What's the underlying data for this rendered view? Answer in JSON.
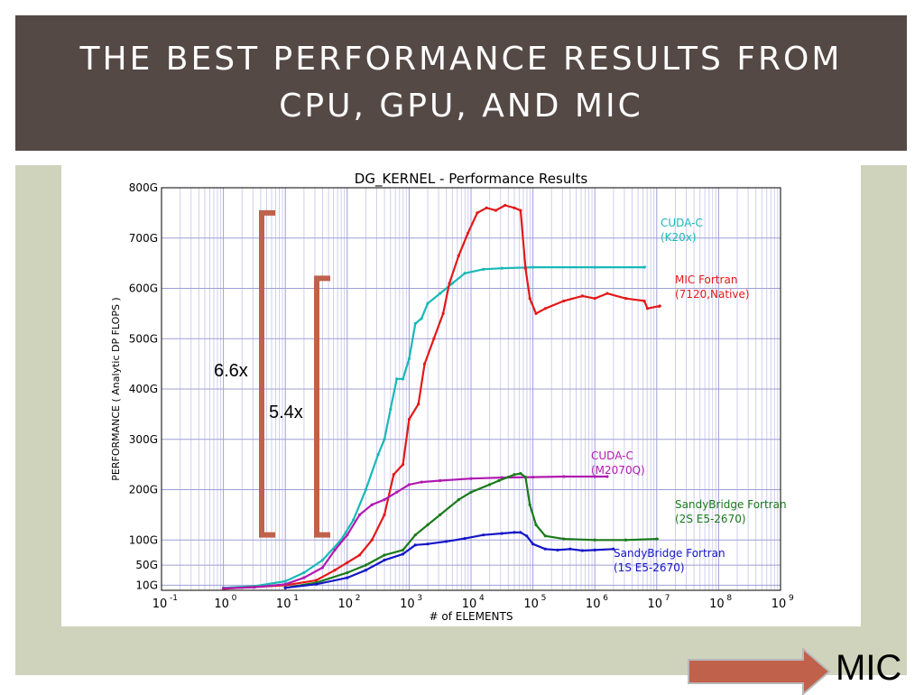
{
  "slide": {
    "title": "THE BEST PERFORMANCE RESULTS FROM CPU, GPU, AND MIC",
    "next_label": "MIC"
  },
  "chart_data": {
    "type": "line",
    "title": "DG_KERNEL - Performance Results",
    "xlabel": "# of ELEMENTS",
    "ylabel": "PERFORMANCE ( Analytic DP FLOPS )",
    "x_scale": "log",
    "xlim_exp": [
      -1,
      9
    ],
    "ylim": [
      0,
      800
    ],
    "grid": true,
    "x_ticks": [
      {
        "base": "10",
        "exp": "-1"
      },
      {
        "base": "10",
        "exp": "0"
      },
      {
        "base": "10",
        "exp": "1"
      },
      {
        "base": "10",
        "exp": "2"
      },
      {
        "base": "10",
        "exp": "3"
      },
      {
        "base": "10",
        "exp": "4"
      },
      {
        "base": "10",
        "exp": "5"
      },
      {
        "base": "10",
        "exp": "6"
      },
      {
        "base": "10",
        "exp": "7"
      },
      {
        "base": "10",
        "exp": "8"
      },
      {
        "base": "10",
        "exp": "9"
      }
    ],
    "y_ticks": [
      {
        "value": 10,
        "label": "10G"
      },
      {
        "value": 50,
        "label": "50G"
      },
      {
        "value": 100,
        "label": "100G"
      },
      {
        "value": 200,
        "label": "200G"
      },
      {
        "value": 300,
        "label": "300G"
      },
      {
        "value": 400,
        "label": "400G"
      },
      {
        "value": 500,
        "label": "500G"
      },
      {
        "value": 600,
        "label": "600G"
      },
      {
        "value": 700,
        "label": "700G"
      },
      {
        "value": 800,
        "label": "800G"
      }
    ],
    "series": [
      {
        "name": "CUDA-C (K20x)",
        "color": "#19b8b8",
        "points": [
          [
            0,
            5
          ],
          [
            0.5,
            8
          ],
          [
            1,
            18
          ],
          [
            1.3,
            35
          ],
          [
            1.6,
            60
          ],
          [
            1.9,
            100
          ],
          [
            2.1,
            140
          ],
          [
            2.3,
            200
          ],
          [
            2.5,
            270
          ],
          [
            2.6,
            300
          ],
          [
            2.7,
            360
          ],
          [
            2.8,
            420
          ],
          [
            2.9,
            420
          ],
          [
            3.0,
            460
          ],
          [
            3.1,
            530
          ],
          [
            3.2,
            540
          ],
          [
            3.3,
            570
          ],
          [
            3.5,
            590
          ],
          [
            3.7,
            610
          ],
          [
            3.9,
            630
          ],
          [
            4.2,
            638
          ],
          [
            4.5,
            640
          ],
          [
            5,
            642
          ],
          [
            6,
            642
          ],
          [
            6.8,
            642
          ]
        ],
        "labels": [
          "CUDA-C",
          "(K20x)"
        ]
      },
      {
        "name": "MIC Fortran (7120,Native)",
        "color": "#e31919",
        "points": [
          [
            0,
            3
          ],
          [
            1,
            10
          ],
          [
            1.5,
            20
          ],
          [
            1.8,
            40
          ],
          [
            2.0,
            55
          ],
          [
            2.2,
            70
          ],
          [
            2.4,
            100
          ],
          [
            2.6,
            150
          ],
          [
            2.75,
            230
          ],
          [
            2.9,
            250
          ],
          [
            3.0,
            340
          ],
          [
            3.15,
            370
          ],
          [
            3.25,
            450
          ],
          [
            3.4,
            500
          ],
          [
            3.55,
            550
          ],
          [
            3.65,
            610
          ],
          [
            3.8,
            665
          ],
          [
            3.95,
            710
          ],
          [
            4.1,
            750
          ],
          [
            4.25,
            760
          ],
          [
            4.4,
            755
          ],
          [
            4.55,
            765
          ],
          [
            4.7,
            760
          ],
          [
            4.8,
            755
          ],
          [
            4.88,
            640
          ],
          [
            4.95,
            580
          ],
          [
            5.05,
            550
          ],
          [
            5.2,
            560
          ],
          [
            5.5,
            575
          ],
          [
            5.8,
            585
          ],
          [
            6.0,
            580
          ],
          [
            6.2,
            590
          ],
          [
            6.5,
            580
          ],
          [
            6.8,
            575
          ],
          [
            6.85,
            560
          ],
          [
            7.05,
            565
          ]
        ],
        "labels": [
          "MIC Fortran",
          "(7120,Native)"
        ]
      },
      {
        "name": "CUDA-C (M2070Q)",
        "color": "#b01ab0",
        "points": [
          [
            0,
            4
          ],
          [
            0.5,
            6
          ],
          [
            1,
            12
          ],
          [
            1.3,
            25
          ],
          [
            1.6,
            45
          ],
          [
            1.8,
            80
          ],
          [
            2.0,
            110
          ],
          [
            2.2,
            150
          ],
          [
            2.4,
            170
          ],
          [
            2.6,
            180
          ],
          [
            2.8,
            195
          ],
          [
            3.0,
            210
          ],
          [
            3.2,
            215
          ],
          [
            3.5,
            218
          ],
          [
            4.0,
            222
          ],
          [
            4.5,
            224
          ],
          [
            5.0,
            225
          ],
          [
            5.5,
            226
          ],
          [
            6.0,
            226
          ],
          [
            6.2,
            226
          ]
        ],
        "labels": [
          "CUDA-C",
          "(M2070Q)"
        ]
      },
      {
        "name": "SandyBridge Fortran (2S E5-2670)",
        "color": "#1a7a1a",
        "points": [
          [
            1,
            5
          ],
          [
            1.5,
            15
          ],
          [
            2.0,
            35
          ],
          [
            2.3,
            50
          ],
          [
            2.6,
            70
          ],
          [
            2.9,
            80
          ],
          [
            3.1,
            110
          ],
          [
            3.3,
            130
          ],
          [
            3.5,
            150
          ],
          [
            3.8,
            180
          ],
          [
            4.0,
            195
          ],
          [
            4.3,
            210
          ],
          [
            4.45,
            218
          ],
          [
            4.6,
            225
          ],
          [
            4.7,
            230
          ],
          [
            4.8,
            232
          ],
          [
            4.88,
            225
          ],
          [
            4.95,
            170
          ],
          [
            5.05,
            130
          ],
          [
            5.2,
            108
          ],
          [
            5.5,
            102
          ],
          [
            6.0,
            100
          ],
          [
            6.5,
            100
          ],
          [
            7.0,
            102
          ]
        ],
        "labels": [
          "SandyBridge Fortran",
          "(2S E5-2670)"
        ]
      },
      {
        "name": "SandyBridge Fortran (1S E5-2670)",
        "color": "#1515c8",
        "points": [
          [
            1,
            5
          ],
          [
            1.5,
            12
          ],
          [
            2.0,
            25
          ],
          [
            2.3,
            40
          ],
          [
            2.6,
            60
          ],
          [
            2.9,
            72
          ],
          [
            3.1,
            90
          ],
          [
            3.3,
            92
          ],
          [
            3.6,
            97
          ],
          [
            3.9,
            103
          ],
          [
            4.2,
            110
          ],
          [
            4.5,
            113
          ],
          [
            4.7,
            115
          ],
          [
            4.8,
            115
          ],
          [
            4.9,
            108
          ],
          [
            5.0,
            92
          ],
          [
            5.2,
            82
          ],
          [
            5.4,
            80
          ],
          [
            5.6,
            82
          ],
          [
            5.8,
            79
          ],
          [
            6.0,
            80
          ],
          [
            6.3,
            82
          ]
        ],
        "labels": [
          "SandyBridge Fortran",
          "(1S E5-2670)"
        ]
      }
    ],
    "annotations": [
      {
        "text": "6.6x",
        "bracket": [
          110,
          750
        ]
      },
      {
        "text": "5.4x",
        "bracket": [
          110,
          620
        ]
      }
    ]
  }
}
